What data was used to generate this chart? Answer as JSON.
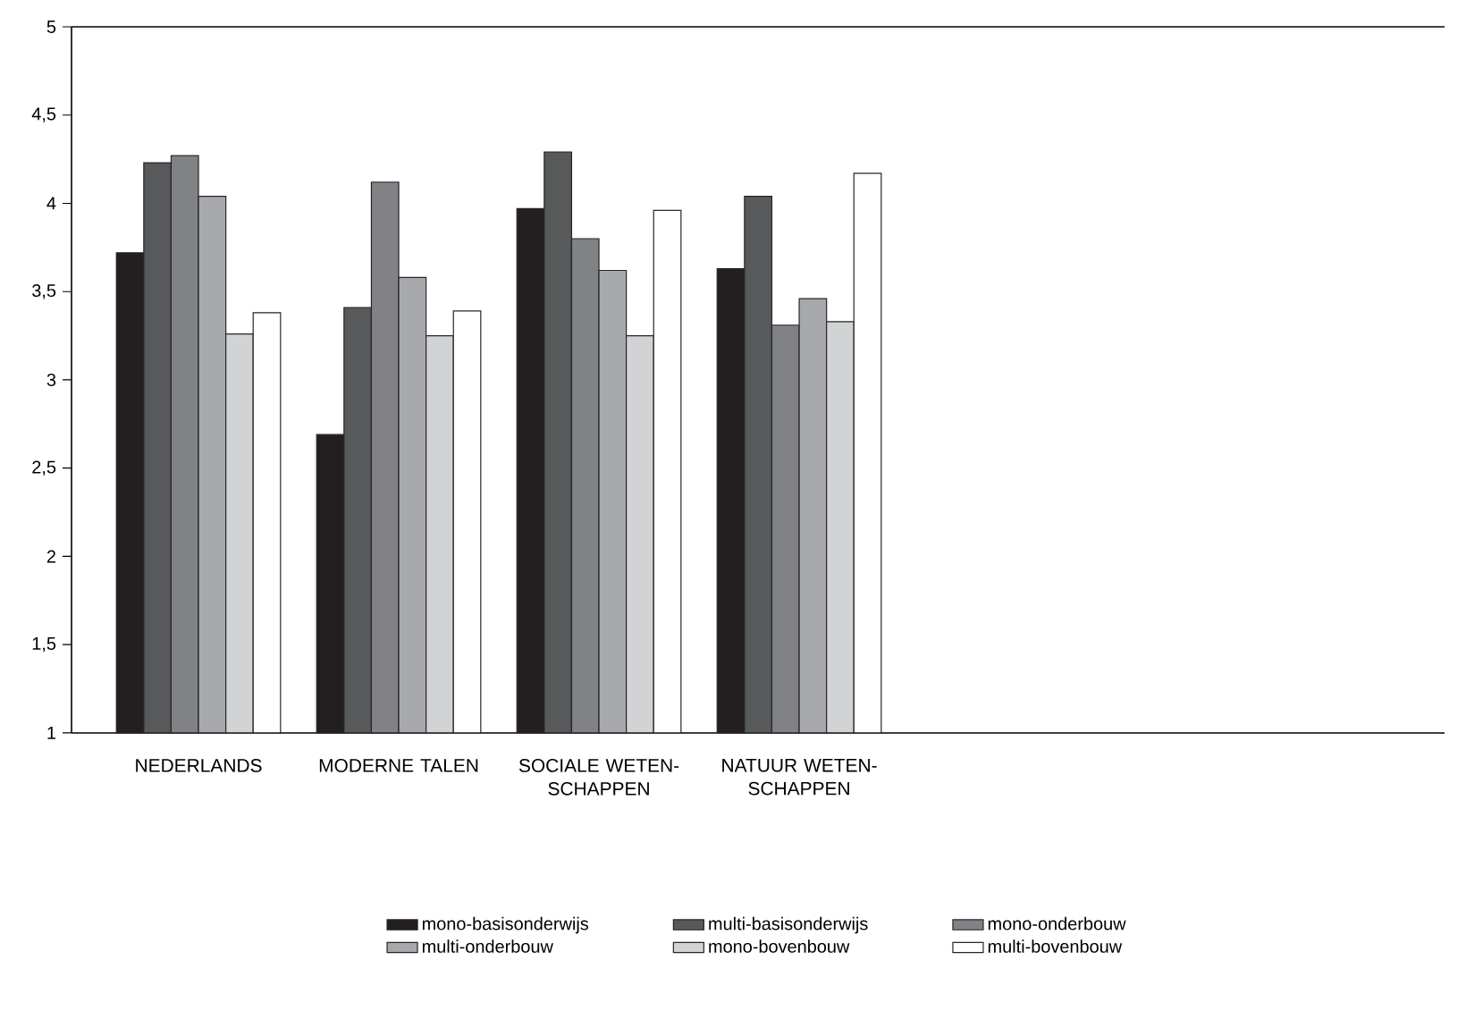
{
  "chart_data": {
    "type": "bar",
    "categories": [
      "NEDERLANDS",
      "MODERNE TALEN",
      "SOCIALE WETEN-SCHAPPEN",
      "NATUUR WETEN-SCHAPPEN",
      null,
      null,
      null
    ],
    "series": [
      {
        "name": "mono-basisonderwijs",
        "color": "#231f20",
        "values": [
          3.72,
          2.69,
          3.97,
          3.63,
          null,
          null,
          null
        ]
      },
      {
        "name": "multi-basisonderwijs",
        "color": "#58595b",
        "values": [
          4.23,
          3.41,
          4.29,
          4.04,
          null,
          null,
          null
        ]
      },
      {
        "name": "mono-onderbouw",
        "color": "#808285",
        "values": [
          4.27,
          4.12,
          3.8,
          3.31,
          null,
          null,
          null
        ]
      },
      {
        "name": "multi-onderbouw",
        "color": "#a7a9ac",
        "values": [
          4.04,
          3.58,
          3.62,
          3.46,
          null,
          null,
          null
        ]
      },
      {
        "name": "mono-bovenbouw",
        "color": "#d1d3d4",
        "values": [
          3.26,
          3.25,
          3.25,
          3.33,
          null,
          null,
          null
        ]
      },
      {
        "name": "multi-bovenbouw",
        "color": "#ffffff",
        "values": [
          3.38,
          3.39,
          3.96,
          4.17,
          null,
          null,
          null
        ]
      }
    ],
    "ylim": [
      1,
      5
    ],
    "yticks": [
      1,
      {
        "value": 1.5,
        "label": "1,5"
      },
      2,
      {
        "value": 2.5,
        "label": "2,5"
      },
      3,
      {
        "value": 3.5,
        "label": "3,5"
      },
      4,
      {
        "value": 4.5,
        "label": "4,5"
      },
      5
    ],
    "grid": false,
    "legend": "bottom"
  }
}
